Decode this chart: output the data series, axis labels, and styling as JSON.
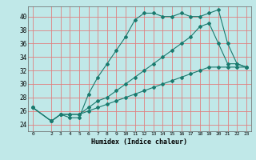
{
  "title": "",
  "xlabel": "Humidex (Indice chaleur)",
  "ylabel": "",
  "bg_color": "#c0e8e8",
  "grid_color": "#e08080",
  "line_color": "#1a7a6e",
  "xlim": [
    -0.5,
    23.5
  ],
  "ylim": [
    23,
    41.5
  ],
  "xticks": [
    0,
    2,
    3,
    4,
    5,
    6,
    7,
    8,
    9,
    10,
    11,
    12,
    13,
    14,
    15,
    16,
    17,
    18,
    19,
    20,
    21,
    22,
    23
  ],
  "yticks": [
    24,
    26,
    28,
    30,
    32,
    34,
    36,
    38,
    40
  ],
  "series": [
    {
      "x": [
        0,
        2,
        3,
        4,
        5,
        6,
        7,
        8,
        9,
        10,
        11,
        12,
        13,
        14,
        15,
        16,
        17,
        18,
        19,
        20,
        21,
        22,
        23
      ],
      "y": [
        26.5,
        24.5,
        25.5,
        25,
        25,
        28.5,
        31,
        33,
        35,
        37,
        39.5,
        40.5,
        40.5,
        40,
        40,
        40.5,
        40,
        40,
        40.5,
        41,
        36,
        33,
        32.5
      ]
    },
    {
      "x": [
        0,
        2,
        3,
        4,
        5,
        6,
        7,
        8,
        9,
        10,
        11,
        12,
        13,
        14,
        15,
        16,
        17,
        18,
        19,
        20,
        21,
        22,
        23
      ],
      "y": [
        26.5,
        24.5,
        25.5,
        25.5,
        25.5,
        26.5,
        27.5,
        28,
        29,
        30,
        31,
        32,
        33,
        34,
        35,
        36,
        37,
        38.5,
        39,
        36,
        33,
        33,
        32.5
      ]
    },
    {
      "x": [
        0,
        2,
        3,
        4,
        5,
        6,
        7,
        8,
        9,
        10,
        11,
        12,
        13,
        14,
        15,
        16,
        17,
        18,
        19,
        20,
        21,
        22,
        23
      ],
      "y": [
        26.5,
        24.5,
        25.5,
        25.5,
        25.5,
        26,
        26.5,
        27,
        27.5,
        28,
        28.5,
        29,
        29.5,
        30,
        30.5,
        31,
        31.5,
        32,
        32.5,
        32.5,
        32.5,
        32.5,
        32.5
      ]
    }
  ]
}
